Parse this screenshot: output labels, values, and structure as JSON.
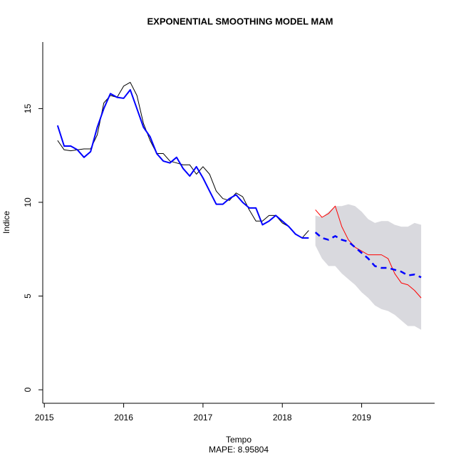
{
  "chart_data": {
    "type": "line",
    "title": "EXPONENTIAL SMOOTHING MODEL MAM",
    "xlabel": "Tempo",
    "ylabel": "Indice",
    "annotation": "MAPE:  8.95804",
    "annotation_color": "#0000ff",
    "xlim": [
      2014.98,
      2019.92
    ],
    "ylim": [
      -0.72,
      18.55
    ],
    "xticks": [
      2015,
      2016,
      2017,
      2018,
      2019
    ],
    "yticks": [
      0,
      5,
      10,
      15
    ],
    "x": [
      2015.167,
      2015.25,
      2015.333,
      2015.417,
      2015.5,
      2015.583,
      2015.667,
      2015.75,
      2015.833,
      2015.917,
      2016,
      2016.083,
      2016.167,
      2016.25,
      2016.333,
      2016.417,
      2016.5,
      2016.583,
      2016.667,
      2016.75,
      2016.833,
      2016.917,
      2017,
      2017.083,
      2017.167,
      2017.25,
      2017.333,
      2017.417,
      2017.5,
      2017.583,
      2017.667,
      2017.75,
      2017.833,
      2017.917,
      2018,
      2018.083,
      2018.167,
      2018.25,
      2018.333,
      2018.417,
      2018.5,
      2018.583,
      2018.667,
      2018.75,
      2018.833,
      2018.917,
      2019,
      2019.083,
      2019.167,
      2019.25,
      2019.333,
      2019.417,
      2019.5,
      2019.583,
      2019.667,
      2019.75
    ],
    "band": {
      "color": "#d9d9de",
      "lower": [
        null,
        null,
        null,
        null,
        null,
        null,
        null,
        null,
        null,
        null,
        null,
        null,
        null,
        null,
        null,
        null,
        null,
        null,
        null,
        null,
        null,
        null,
        null,
        null,
        null,
        null,
        null,
        null,
        null,
        null,
        null,
        null,
        null,
        null,
        null,
        null,
        null,
        null,
        null,
        7.7,
        7.0,
        6.6,
        6.6,
        6.2,
        5.9,
        5.6,
        5.2,
        4.9,
        4.5,
        4.3,
        4.2,
        4.0,
        3.7,
        3.4,
        3.4,
        3.2
      ],
      "upper": [
        null,
        null,
        null,
        null,
        null,
        null,
        null,
        null,
        null,
        null,
        null,
        null,
        null,
        null,
        null,
        null,
        null,
        null,
        null,
        null,
        null,
        null,
        null,
        null,
        null,
        null,
        null,
        null,
        null,
        null,
        null,
        null,
        null,
        null,
        null,
        null,
        null,
        null,
        null,
        9.3,
        9.2,
        9.5,
        9.8,
        9.8,
        9.9,
        9.8,
        9.5,
        9.1,
        8.9,
        9.0,
        9.0,
        8.8,
        8.7,
        8.7,
        8.9,
        8.8
      ]
    },
    "series": [
      {
        "color": "#000000",
        "width": 1,
        "dash": false,
        "values": [
          13.3,
          12.8,
          12.75,
          12.8,
          12.85,
          12.85,
          13.6,
          15.3,
          15.7,
          15.6,
          16.2,
          16.4,
          15.7,
          14.2,
          13.3,
          12.6,
          12.6,
          12.2,
          12.1,
          12.0,
          12.0,
          11.5,
          11.9,
          11.5,
          10.6,
          10.2,
          10.1,
          10.5,
          10.3,
          9.6,
          9.0,
          9.0,
          9.3,
          9.3,
          8.9,
          8.7,
          8.3,
          8.1,
          8.5,
          null,
          null,
          null,
          null,
          null,
          null,
          null,
          null,
          null,
          null,
          null,
          null,
          null,
          null,
          null,
          null,
          null
        ]
      },
      {
        "color": "#0000ff",
        "width": 2,
        "dash": false,
        "values": [
          14.1,
          13.0,
          13.0,
          12.8,
          12.4,
          12.7,
          14.0,
          15.0,
          15.8,
          15.6,
          15.55,
          16.0,
          15.0,
          14.0,
          13.5,
          12.6,
          12.2,
          12.1,
          12.4,
          11.8,
          11.4,
          11.9,
          11.3,
          10.6,
          9.9,
          9.9,
          10.2,
          10.4,
          10.0,
          9.7,
          9.7,
          8.8,
          9.0,
          9.3,
          9.0,
          8.7,
          8.3,
          8.1,
          8.1,
          null,
          null,
          null,
          null,
          null,
          null,
          null,
          null,
          null,
          null,
          null,
          null,
          null,
          null,
          null,
          null,
          null
        ]
      },
      {
        "color": "#ff0000",
        "width": 1,
        "dash": false,
        "values": [
          null,
          null,
          null,
          null,
          null,
          null,
          null,
          null,
          null,
          null,
          null,
          null,
          null,
          null,
          null,
          null,
          null,
          null,
          null,
          null,
          null,
          null,
          null,
          null,
          null,
          null,
          null,
          null,
          null,
          null,
          null,
          null,
          null,
          null,
          null,
          null,
          null,
          null,
          null,
          9.6,
          9.2,
          9.4,
          9.8,
          8.7,
          8.0,
          7.6,
          7.4,
          7.2,
          7.2,
          7.2,
          7.0,
          6.2,
          5.7,
          5.6,
          5.3,
          4.9
        ]
      },
      {
        "color": "#0000ff",
        "width": 2.5,
        "dash": true,
        "values": [
          null,
          null,
          null,
          null,
          null,
          null,
          null,
          null,
          null,
          null,
          null,
          null,
          null,
          null,
          null,
          null,
          null,
          null,
          null,
          null,
          null,
          null,
          null,
          null,
          null,
          null,
          null,
          null,
          null,
          null,
          null,
          null,
          null,
          null,
          null,
          null,
          null,
          null,
          null,
          8.4,
          8.1,
          8.0,
          8.2,
          8.0,
          7.9,
          7.6,
          7.3,
          7.0,
          6.6,
          6.5,
          6.5,
          6.4,
          6.3,
          6.1,
          6.15,
          6.0
        ]
      }
    ]
  }
}
